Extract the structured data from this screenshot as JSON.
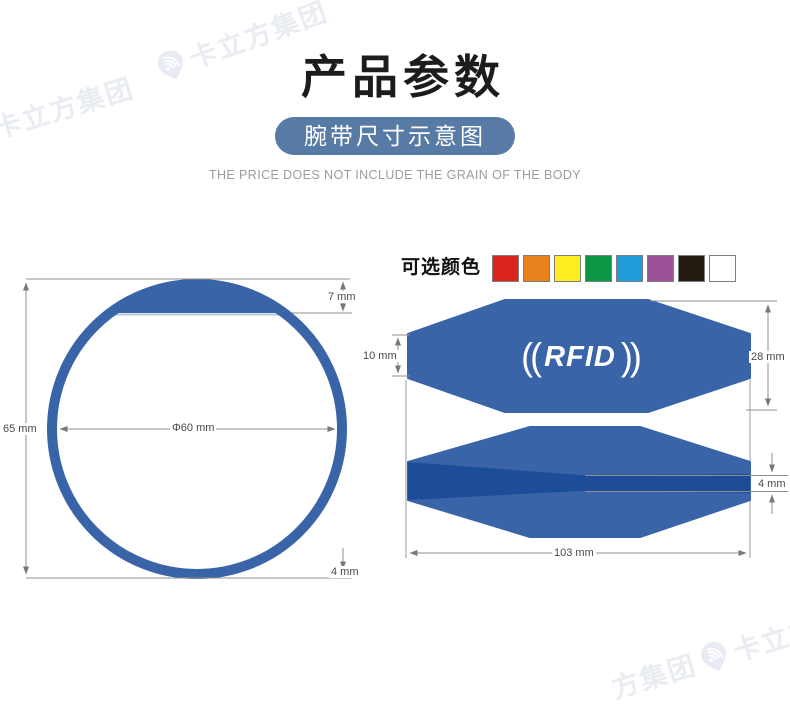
{
  "watermark": {
    "brand": "卡立方集团",
    "fragment_top_left": "卡立方集团",
    "fragment_top": "卡立方集团",
    "fragment_bottom_pre": "方集团",
    "fragment_bottom_post": "卡立方",
    "color": "#eaecf3"
  },
  "header": {
    "title": "产品参数",
    "badge": "腕带尺寸示意图",
    "subtitle": "THE PRICE DOES NOT INCLUDE THE GRAIN OF THE BODY"
  },
  "colors_section": {
    "label": "可选颜色",
    "swatches": [
      {
        "name": "red",
        "hex": "#d9251d"
      },
      {
        "name": "orange",
        "hex": "#e8821c"
      },
      {
        "name": "yellow",
        "hex": "#fdee21"
      },
      {
        "name": "green",
        "hex": "#0c9747"
      },
      {
        "name": "blue",
        "hex": "#1f9ddb"
      },
      {
        "name": "purple",
        "hex": "#9d5196"
      },
      {
        "name": "black",
        "hex": "#241b13"
      },
      {
        "name": "white",
        "hex": "#ffffff"
      }
    ]
  },
  "ring_diagram": {
    "height_label": "65 mm",
    "diameter_label": "Φ60 mm",
    "chord_label": "7 mm",
    "bottom_label": "4 mm"
  },
  "band_diagram": {
    "paren_left": "((",
    "rfid_text": "RFID",
    "paren_right": "))",
    "end_width_label": "10 mm",
    "center_width_label": "28 mm",
    "thickness_label": "4 mm",
    "length_label": "103 mm"
  },
  "palette": {
    "band_blue": "#3a64a8",
    "band_dark_blue": "#1d4d98",
    "badge_blue": "#577ba4",
    "dimension_gray": "#8f8f8f"
  }
}
